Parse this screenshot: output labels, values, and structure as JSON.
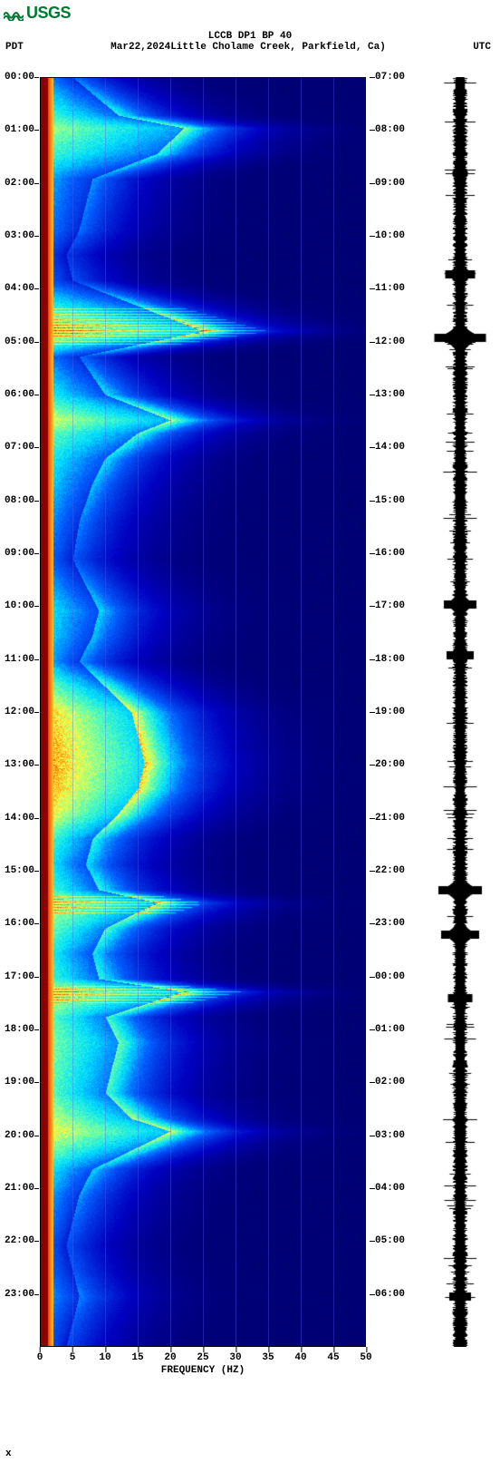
{
  "logo": {
    "text": "USGS",
    "color": "#007a33"
  },
  "title": {
    "line1": "LCCB DP1 BP 40",
    "tz_left": "PDT",
    "date": "Mar22,2024",
    "location": "Little Cholame Creek, Parkfield, Ca)",
    "tz_right": "UTC"
  },
  "colors": {
    "background": "#ffffff",
    "text": "#000000",
    "spectrogram_bg": "#00008b",
    "logo": "#007a33"
  },
  "x_axis": {
    "label": "FREQUENCY (HZ)",
    "min": 0,
    "max": 50,
    "tick_step": 5,
    "ticks": [
      0,
      5,
      10,
      15,
      20,
      25,
      30,
      35,
      40,
      45,
      50
    ]
  },
  "y_axis_left": {
    "label_tz": "PDT",
    "ticks": [
      "00:00",
      "01:00",
      "02:00",
      "03:00",
      "04:00",
      "05:00",
      "06:00",
      "07:00",
      "08:00",
      "09:00",
      "10:00",
      "11:00",
      "12:00",
      "13:00",
      "14:00",
      "15:00",
      "16:00",
      "17:00",
      "18:00",
      "19:00",
      "20:00",
      "21:00",
      "22:00",
      "23:00"
    ]
  },
  "y_axis_right": {
    "label_tz": "UTC",
    "ticks": [
      "07:00",
      "08:00",
      "09:00",
      "10:00",
      "11:00",
      "12:00",
      "13:00",
      "14:00",
      "15:00",
      "16:00",
      "17:00",
      "18:00",
      "19:00",
      "20:00",
      "21:00",
      "22:00",
      "23:00",
      "00:00",
      "01:00",
      "02:00",
      "03:00",
      "04:00",
      "05:00",
      "06:00"
    ]
  },
  "spectrogram": {
    "type": "spectrogram",
    "colormap_stops": [
      {
        "v": 0.0,
        "c": "#00004d"
      },
      {
        "v": 0.18,
        "c": "#0000c0"
      },
      {
        "v": 0.38,
        "c": "#0060ff"
      },
      {
        "v": 0.52,
        "c": "#00e0ff"
      },
      {
        "v": 0.65,
        "c": "#60ffb0"
      },
      {
        "v": 0.78,
        "c": "#ffff40"
      },
      {
        "v": 0.9,
        "c": "#ff6000"
      },
      {
        "v": 1.0,
        "c": "#8b0000"
      }
    ],
    "low_freq_saturation_hz": 2.0,
    "intensity_rows": [
      {
        "t": 0.0,
        "cut": 5,
        "hi": 0.35
      },
      {
        "t": 0.03,
        "cut": 12,
        "hi": 0.55
      },
      {
        "t": 0.04,
        "cut": 22,
        "hi": 0.65
      },
      {
        "t": 0.06,
        "cut": 18,
        "hi": 0.55
      },
      {
        "t": 0.08,
        "cut": 8,
        "hi": 0.4
      },
      {
        "t": 0.12,
        "cut": 6,
        "hi": 0.35
      },
      {
        "t": 0.14,
        "cut": 4,
        "hi": 0.25
      },
      {
        "t": 0.16,
        "cut": 5,
        "hi": 0.3
      },
      {
        "t": 0.2,
        "cut": 25,
        "hi": 0.75,
        "spike": 1
      },
      {
        "t": 0.22,
        "cut": 6,
        "hi": 0.35
      },
      {
        "t": 0.25,
        "cut": 10,
        "hi": 0.5
      },
      {
        "t": 0.27,
        "cut": 20,
        "hi": 0.7
      },
      {
        "t": 0.28,
        "cut": 15,
        "hi": 0.6
      },
      {
        "t": 0.3,
        "cut": 10,
        "hi": 0.5
      },
      {
        "t": 0.32,
        "cut": 8,
        "hi": 0.45
      },
      {
        "t": 0.35,
        "cut": 6,
        "hi": 0.38
      },
      {
        "t": 0.38,
        "cut": 5,
        "hi": 0.32
      },
      {
        "t": 0.4,
        "cut": 7,
        "hi": 0.4
      },
      {
        "t": 0.42,
        "cut": 9,
        "hi": 0.48
      },
      {
        "t": 0.44,
        "cut": 8,
        "hi": 0.45
      },
      {
        "t": 0.46,
        "cut": 6,
        "hi": 0.4
      },
      {
        "t": 0.48,
        "cut": 10,
        "hi": 0.6
      },
      {
        "t": 0.5,
        "cut": 14,
        "hi": 0.75
      },
      {
        "t": 0.52,
        "cut": 15,
        "hi": 0.78
      },
      {
        "t": 0.54,
        "cut": 16,
        "hi": 0.8
      },
      {
        "t": 0.56,
        "cut": 15,
        "hi": 0.78
      },
      {
        "t": 0.58,
        "cut": 12,
        "hi": 0.72
      },
      {
        "t": 0.6,
        "cut": 8,
        "hi": 0.55
      },
      {
        "t": 0.62,
        "cut": 7,
        "hi": 0.48
      },
      {
        "t": 0.64,
        "cut": 9,
        "hi": 0.55
      },
      {
        "t": 0.65,
        "cut": 18,
        "hi": 0.7,
        "spike": 1
      },
      {
        "t": 0.67,
        "cut": 10,
        "hi": 0.6
      },
      {
        "t": 0.69,
        "cut": 8,
        "hi": 0.5
      },
      {
        "t": 0.71,
        "cut": 9,
        "hi": 0.55
      },
      {
        "t": 0.72,
        "cut": 22,
        "hi": 0.72,
        "spike": 1
      },
      {
        "t": 0.74,
        "cut": 10,
        "hi": 0.58
      },
      {
        "t": 0.76,
        "cut": 12,
        "hi": 0.62
      },
      {
        "t": 0.78,
        "cut": 11,
        "hi": 0.6
      },
      {
        "t": 0.8,
        "cut": 10,
        "hi": 0.58
      },
      {
        "t": 0.82,
        "cut": 14,
        "hi": 0.68
      },
      {
        "t": 0.83,
        "cut": 20,
        "hi": 0.72
      },
      {
        "t": 0.84,
        "cut": 16,
        "hi": 0.65
      },
      {
        "t": 0.86,
        "cut": 8,
        "hi": 0.48
      },
      {
        "t": 0.88,
        "cut": 6,
        "hi": 0.4
      },
      {
        "t": 0.9,
        "cut": 5,
        "hi": 0.35
      },
      {
        "t": 0.92,
        "cut": 4,
        "hi": 0.3
      },
      {
        "t": 0.94,
        "cut": 5,
        "hi": 0.32
      },
      {
        "t": 0.96,
        "cut": 6,
        "hi": 0.38
      },
      {
        "t": 0.98,
        "cut": 5,
        "hi": 0.32
      },
      {
        "t": 1.0,
        "cut": 4,
        "hi": 0.28
      }
    ]
  },
  "waveform": {
    "color": "#000000",
    "base_amp": 0.22,
    "events": [
      {
        "t": 0.155,
        "amp": 0.55
      },
      {
        "t": 0.205,
        "amp": 0.95
      },
      {
        "t": 0.415,
        "amp": 0.6
      },
      {
        "t": 0.455,
        "amp": 0.5
      },
      {
        "t": 0.64,
        "amp": 0.8
      },
      {
        "t": 0.675,
        "amp": 0.7
      },
      {
        "t": 0.725,
        "amp": 0.45
      },
      {
        "t": 0.96,
        "amp": 0.4
      }
    ]
  },
  "footer": "x"
}
